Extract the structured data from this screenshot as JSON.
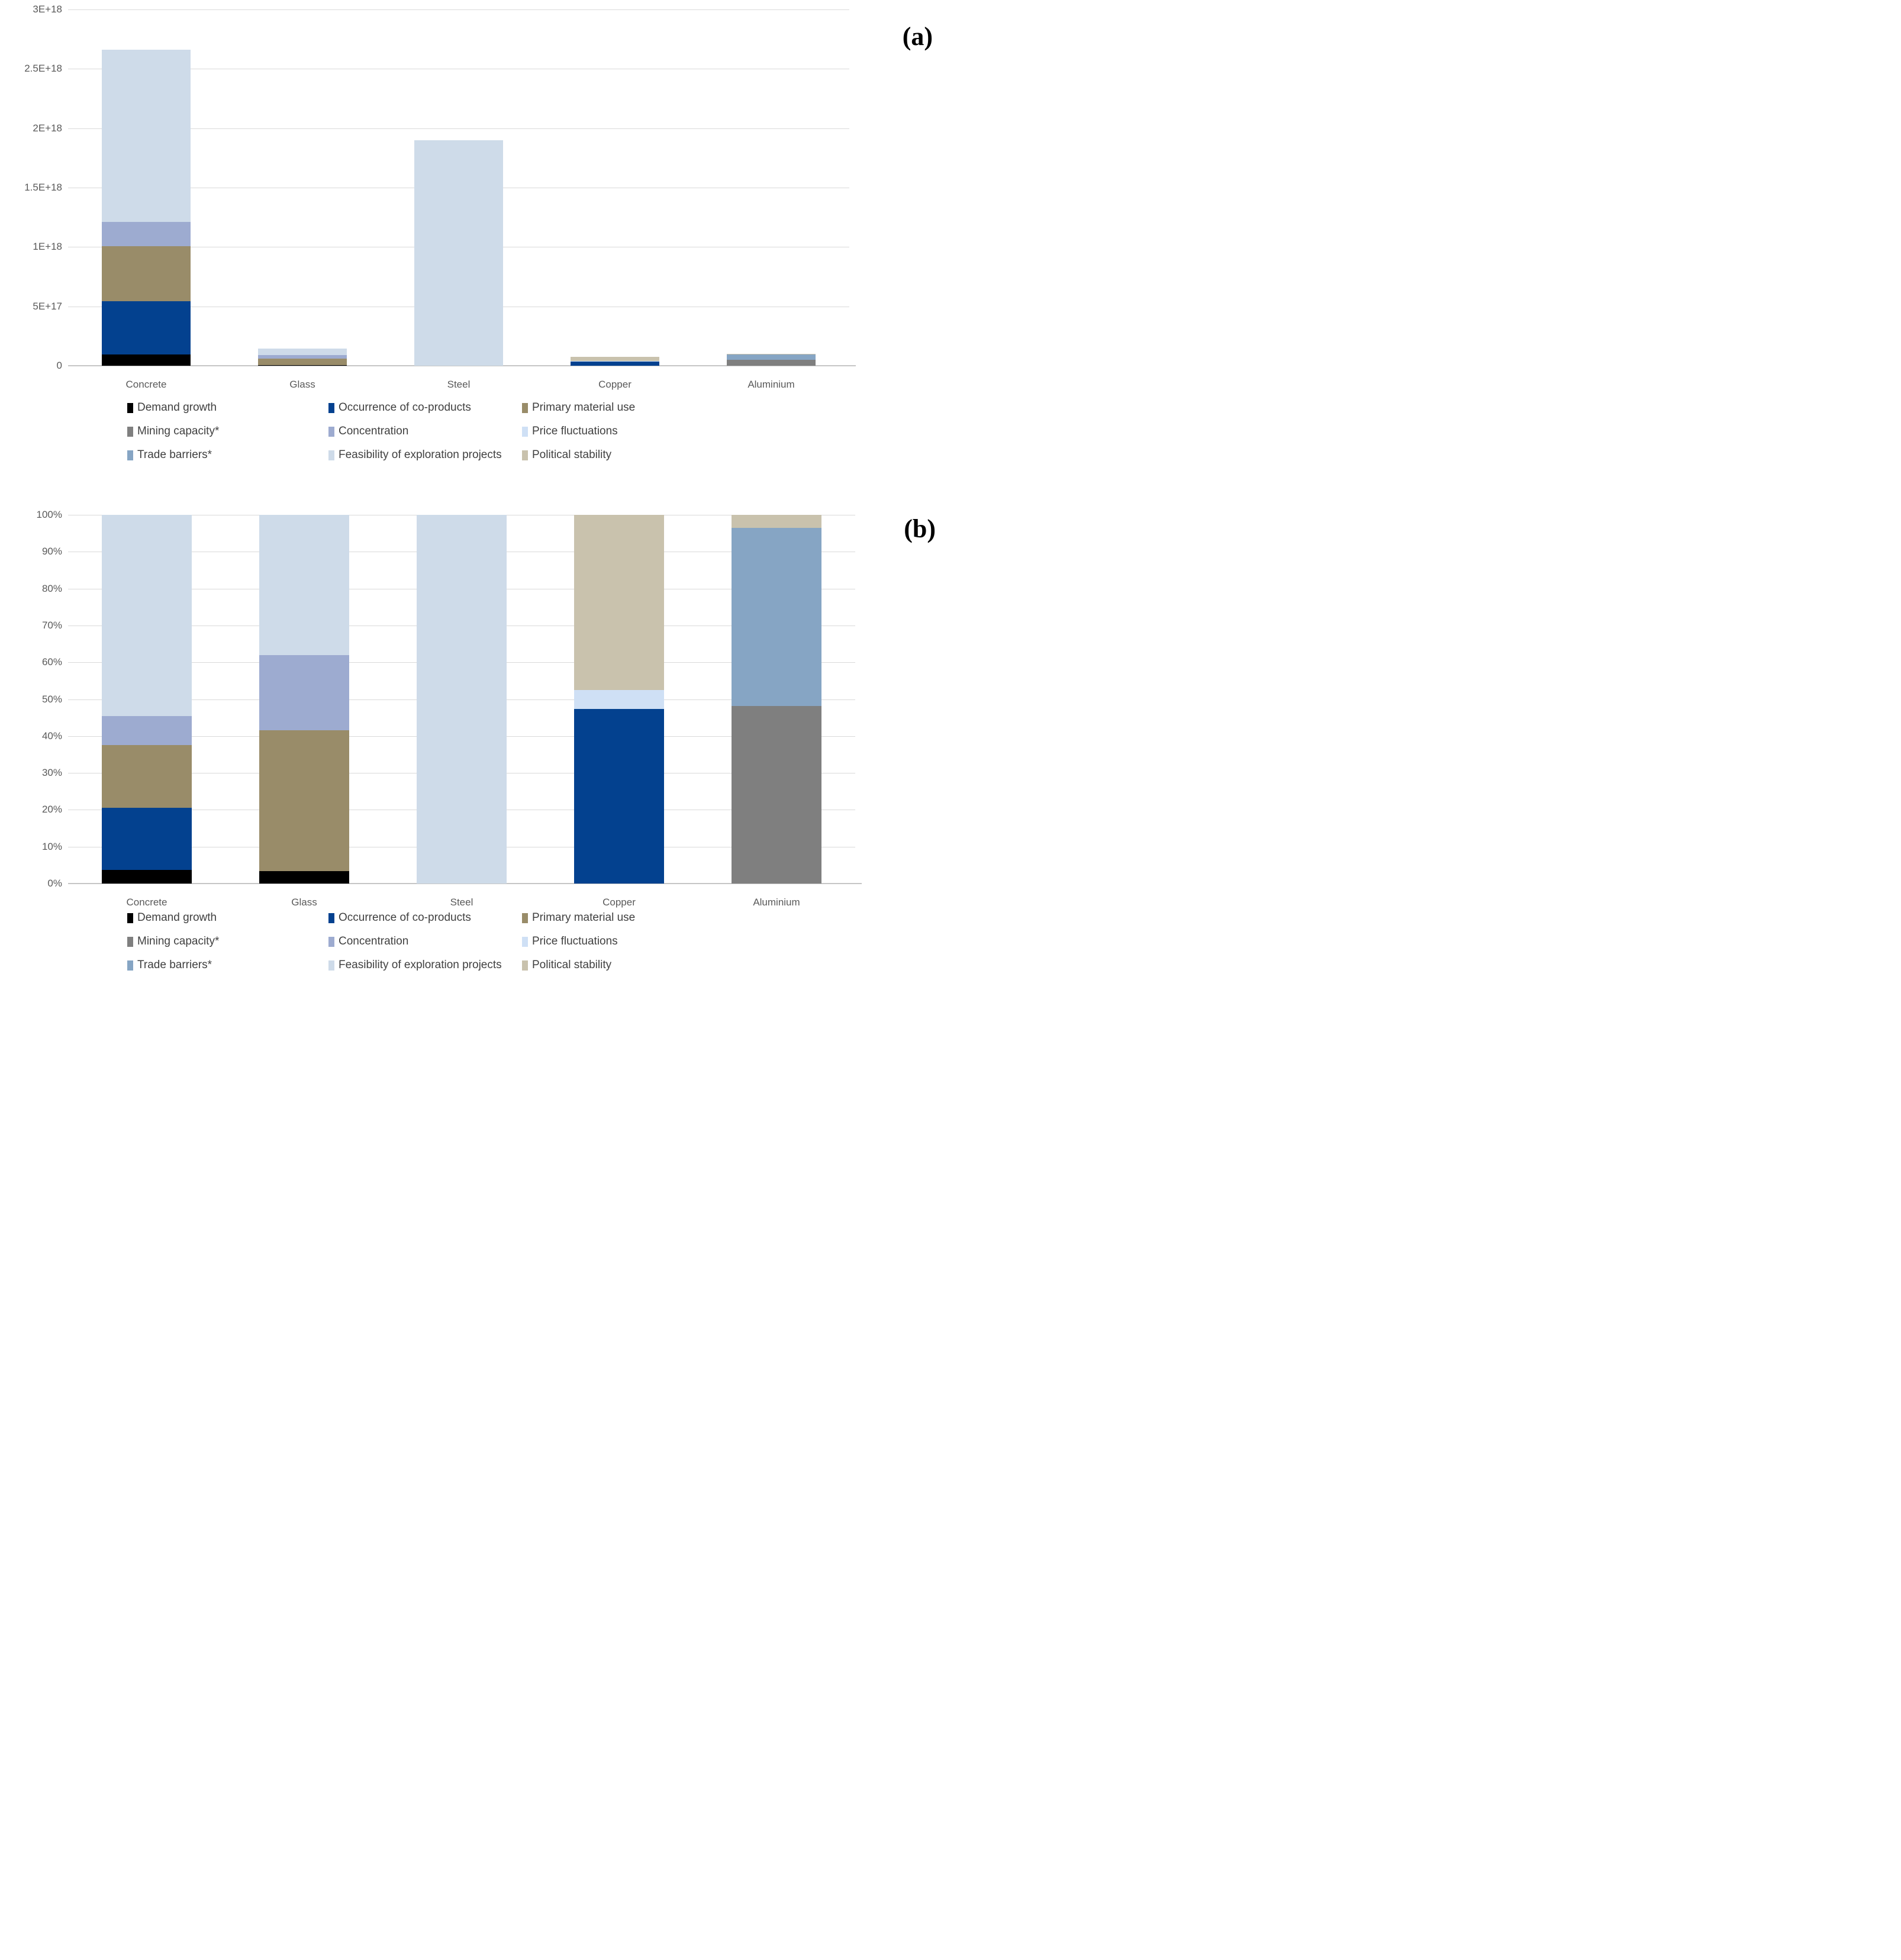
{
  "annotations": {
    "a": "(a)",
    "b": "(b)"
  },
  "colors": {
    "demand_growth": "#000000",
    "occurrence_of_co_products": "#03418f",
    "primary_material_use": "#998c69",
    "mining_capacity": "#7f7f7f",
    "concentration": "#9dabd0",
    "price_fluctuations": "#cfe0f5",
    "trade_barriers": "#86a5c4",
    "feasibility_of_exploration_projects": "#cedbe9",
    "political_stability": "#c9c2ad",
    "gridline": "#d9d9d9",
    "axis_text": "#595959",
    "legend_text": "#404040"
  },
  "legend": [
    {
      "label": "Demand growth",
      "color": "demand_growth",
      "col": 0,
      "row": 0
    },
    {
      "label": "Occurrence of co-products",
      "color": "occurrence_of_co_products",
      "col": 1,
      "row": 0
    },
    {
      "label": "Primary material use",
      "color": "primary_material_use",
      "col": 2,
      "row": 0
    },
    {
      "label": "Mining capacity*",
      "color": "mining_capacity",
      "col": 0,
      "row": 1
    },
    {
      "label": "Concentration",
      "color": "concentration",
      "col": 1,
      "row": 1
    },
    {
      "label": "Price fluctuations",
      "color": "price_fluctuations",
      "col": 2,
      "row": 1
    },
    {
      "label": "Trade barriers*",
      "color": "trade_barriers",
      "col": 0,
      "row": 2
    },
    {
      "label": "Feasibility of exploration projects",
      "color": "feasibility_of_exploration_projects",
      "col": 1,
      "row": 2
    },
    {
      "label": "Political stability",
      "color": "political_stability",
      "col": 2,
      "row": 2
    }
  ],
  "chart_data": [
    {
      "id": "a",
      "type": "bar",
      "stacked": true,
      "title": "",
      "categories": [
        "Concrete",
        "Glass",
        "Steel",
        "Copper",
        "Aluminium"
      ],
      "ylim": [
        0,
        3e+18
      ],
      "yticks": [
        "0",
        "5E+17",
        "1E+18",
        "1.5E+18",
        "2E+18",
        "2.5E+18",
        "3E+18"
      ],
      "grid": true,
      "legend_position": "bottom",
      "series": [
        {
          "name": "Demand growth",
          "color": "demand_growth",
          "values": [
            9.5e+16,
            5000000000000000.0,
            0,
            0,
            0
          ]
        },
        {
          "name": "Occurrence of co-products",
          "color": "occurrence_of_co_products",
          "values": [
            4.5e+17,
            0,
            0,
            3.5e+16,
            0
          ]
        },
        {
          "name": "Primary material use",
          "color": "primary_material_use",
          "values": [
            4.6e+17,
            5.5e+16,
            0,
            0,
            0
          ]
        },
        {
          "name": "Mining capacity*",
          "color": "mining_capacity",
          "values": [
            0,
            0,
            0,
            0,
            4.9e+16
          ]
        },
        {
          "name": "Concentration",
          "color": "concentration",
          "values": [
            2.05e+17,
            3e+16,
            0,
            0,
            0
          ]
        },
        {
          "name": "Price fluctuations",
          "color": "price_fluctuations",
          "values": [
            0,
            0,
            0,
            4000000000000000.0,
            0
          ]
        },
        {
          "name": "Trade barriers*",
          "color": "trade_barriers",
          "values": [
            0,
            0,
            0,
            0,
            4.9e+16
          ]
        },
        {
          "name": "Feasibility of exploration projects",
          "color": "feasibility_of_exploration_projects",
          "values": [
            1.45e+18,
            5.5e+16,
            1.9e+18,
            0,
            0
          ]
        },
        {
          "name": "Political stability",
          "color": "political_stability",
          "values": [
            0,
            0,
            0,
            3.5e+16,
            4000000000000000.0
          ]
        }
      ]
    },
    {
      "id": "b",
      "type": "bar",
      "stacked": true,
      "percent": true,
      "title": "",
      "categories": [
        "Concrete",
        "Glass",
        "Steel",
        "Copper",
        "Aluminium"
      ],
      "ylim": [
        0,
        100
      ],
      "yticks": [
        "0%",
        "10%",
        "20%",
        "30%",
        "40%",
        "50%",
        "60%",
        "70%",
        "80%",
        "90%",
        "100%"
      ],
      "grid": true,
      "legend_position": "bottom",
      "series": [
        {
          "name": "Demand growth",
          "color": "demand_growth",
          "values": [
            3.7,
            3.4,
            0,
            0,
            0
          ]
        },
        {
          "name": "Occurrence of co-products",
          "color": "occurrence_of_co_products",
          "values": [
            16.8,
            0,
            0,
            47.4,
            0
          ]
        },
        {
          "name": "Primary material use",
          "color": "primary_material_use",
          "values": [
            17.1,
            38.1,
            0,
            0,
            0
          ]
        },
        {
          "name": "Mining capacity*",
          "color": "mining_capacity",
          "values": [
            0,
            0,
            0,
            0,
            48.2
          ]
        },
        {
          "name": "Concentration",
          "color": "concentration",
          "values": [
            7.9,
            20.5,
            0,
            0,
            0
          ]
        },
        {
          "name": "Price fluctuations",
          "color": "price_fluctuations",
          "values": [
            0,
            0,
            0,
            5.1,
            0
          ]
        },
        {
          "name": "Trade barriers*",
          "color": "trade_barriers",
          "values": [
            0,
            0,
            0,
            0,
            48.3
          ]
        },
        {
          "name": "Feasibility of exploration projects",
          "color": "feasibility_of_exploration_projects",
          "values": [
            54.5,
            38.0,
            100,
            0,
            0
          ]
        },
        {
          "name": "Political stability",
          "color": "political_stability",
          "values": [
            0,
            0,
            0,
            47.5,
            3.5
          ]
        }
      ]
    }
  ]
}
